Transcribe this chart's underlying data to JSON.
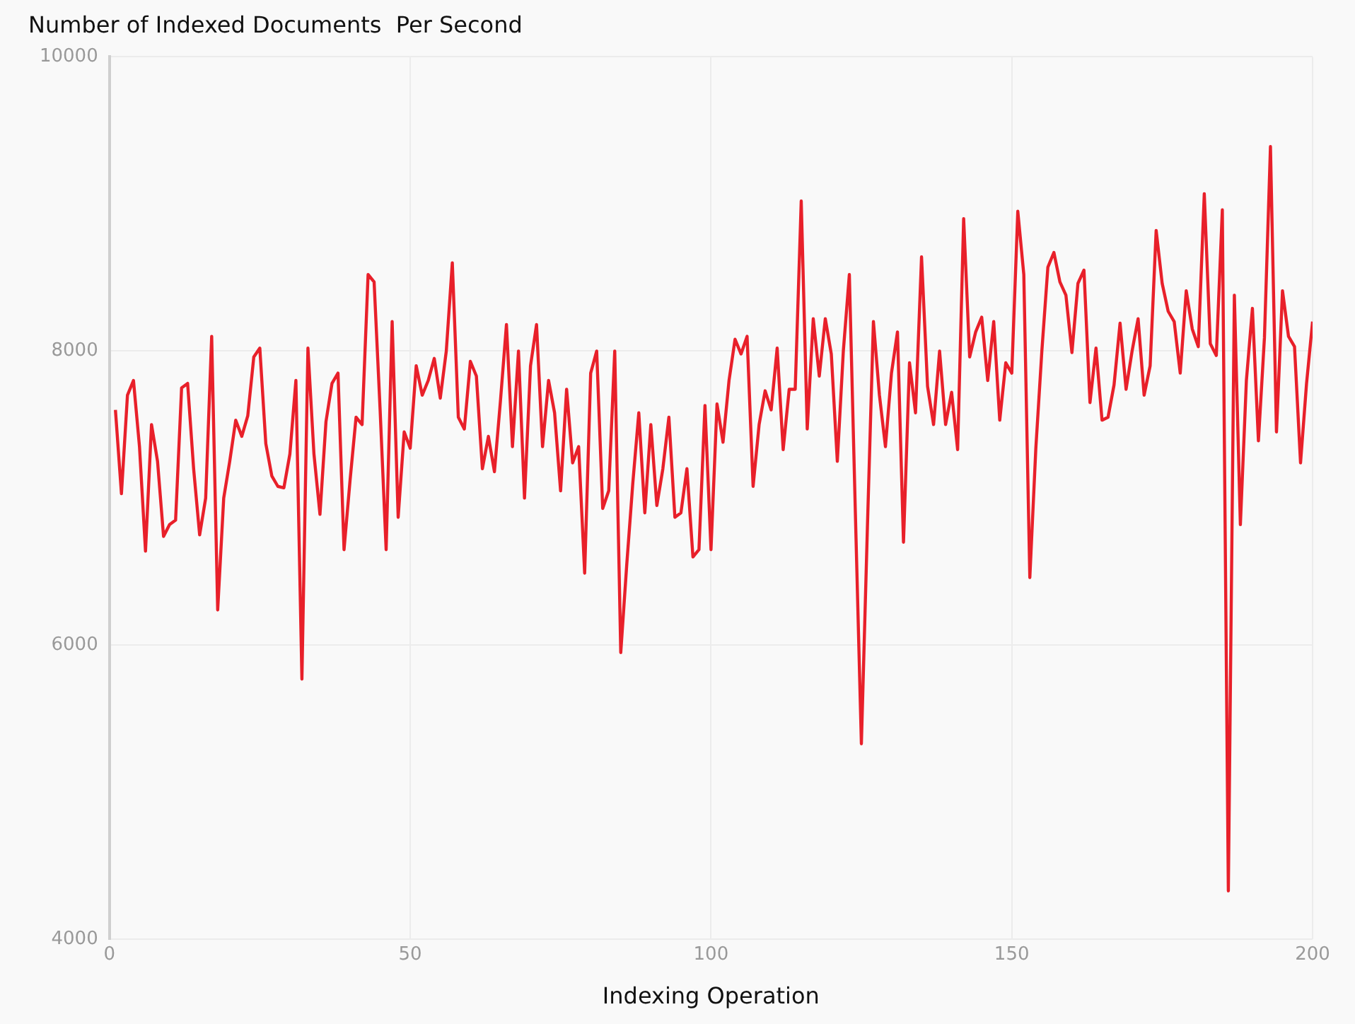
{
  "chart_data": {
    "type": "line",
    "title": "Number of Indexed Documents  Per Second",
    "xlabel": "Indexing Operation",
    "x": [
      1,
      2,
      3,
      4,
      5,
      6,
      7,
      8,
      9,
      10,
      11,
      12,
      13,
      14,
      15,
      16,
      17,
      18,
      19,
      20,
      21,
      22,
      23,
      24,
      25,
      26,
      27,
      28,
      29,
      30,
      31,
      32,
      33,
      34,
      35,
      36,
      37,
      38,
      39,
      40,
      41,
      42,
      43,
      44,
      45,
      46,
      47,
      48,
      49,
      50,
      51,
      52,
      53,
      54,
      55,
      56,
      57,
      58,
      59,
      60,
      61,
      62,
      63,
      64,
      65,
      66,
      67,
      68,
      69,
      70,
      71,
      72,
      73,
      74,
      75,
      76,
      77,
      78,
      79,
      80,
      81,
      82,
      83,
      84,
      85,
      86,
      87,
      88,
      89,
      90,
      91,
      92,
      93,
      94,
      95,
      96,
      97,
      98,
      99,
      100,
      101,
      102,
      103,
      104,
      105,
      106,
      107,
      108,
      109,
      110,
      111,
      112,
      113,
      114,
      115,
      116,
      117,
      118,
      119,
      120,
      121,
      122,
      123,
      124,
      125,
      126,
      127,
      128,
      129,
      130,
      131,
      132,
      133,
      134,
      135,
      136,
      137,
      138,
      139,
      140,
      141,
      142,
      143,
      144,
      145,
      146,
      147,
      148,
      149,
      150,
      151,
      152,
      153,
      154,
      155,
      156,
      157,
      158,
      159,
      160,
      161,
      162,
      163,
      164,
      165,
      166,
      167,
      168,
      169,
      170,
      171,
      172,
      173,
      174,
      175,
      176,
      177,
      178,
      179,
      180,
      181,
      182,
      183,
      184,
      185,
      186,
      187,
      188,
      189,
      190,
      191,
      192,
      193,
      194,
      195,
      196,
      197,
      198,
      199,
      200
    ],
    "series": [
      {
        "color": "#e8202a",
        "values": [
          7600,
          7030,
          7700,
          7800,
          7350,
          6640,
          7500,
          7250,
          6740,
          6820,
          6850,
          7750,
          7780,
          7200,
          6750,
          7000,
          8100,
          6240,
          7000,
          7250,
          7530,
          7420,
          7560,
          7960,
          8020,
          7370,
          7150,
          7080,
          7070,
          7300,
          7800,
          5770,
          8020,
          7300,
          6890,
          7520,
          7780,
          7850,
          6650,
          7120,
          7550,
          7500,
          8520,
          8470,
          7600,
          6650,
          8200,
          6870,
          7450,
          7340,
          7900,
          7700,
          7800,
          7950,
          7680,
          8000,
          8600,
          7550,
          7470,
          7930,
          7830,
          7200,
          7420,
          7180,
          7660,
          8180,
          7350,
          8000,
          7000,
          7900,
          8180,
          7350,
          7800,
          7580,
          7050,
          7740,
          7240,
          7350,
          6490,
          7850,
          8000,
          6930,
          7050,
          8000,
          5950,
          6550,
          7100,
          7580,
          6900,
          7500,
          6950,
          7200,
          7550,
          6870,
          6900,
          7200,
          6600,
          6650,
          7630,
          6650,
          7640,
          7380,
          7800,
          8080,
          7980,
          8100,
          7080,
          7500,
          7730,
          7600,
          8020,
          7330,
          7740,
          7740,
          9020,
          7470,
          8220,
          7830,
          8220,
          7980,
          7250,
          8000,
          8520,
          6900,
          5330,
          6800,
          8200,
          7700,
          7350,
          7850,
          8130,
          6700,
          7920,
          7580,
          8640,
          7760,
          7500,
          8000,
          7500,
          7720,
          7330,
          8900,
          7960,
          8130,
          8230,
          7800,
          8200,
          7530,
          7920,
          7850,
          8950,
          8520,
          6460,
          7340,
          8000,
          8570,
          8670,
          8470,
          8380,
          7990,
          8460,
          8550,
          7650,
          8020,
          7530,
          7550,
          7770,
          8190,
          7740,
          8000,
          8220,
          7700,
          7900,
          8820,
          8460,
          8270,
          8200,
          7850,
          8410,
          8150,
          8030,
          9070,
          8050,
          7970,
          8960,
          4330,
          8380,
          6820,
          7800,
          8290,
          7390,
          8090,
          9390,
          7450,
          8410,
          8100,
          8030,
          7240,
          7780,
          8200
        ]
      }
    ],
    "xlim": [
      0,
      200
    ],
    "xticks": [
      0,
      50,
      100,
      150,
      200
    ],
    "ylim": [
      4000,
      10000
    ],
    "yticks": [
      4000,
      6000,
      8000,
      10000
    ],
    "grid": true,
    "marker": "none",
    "line_style": "solid",
    "legend": false
  }
}
